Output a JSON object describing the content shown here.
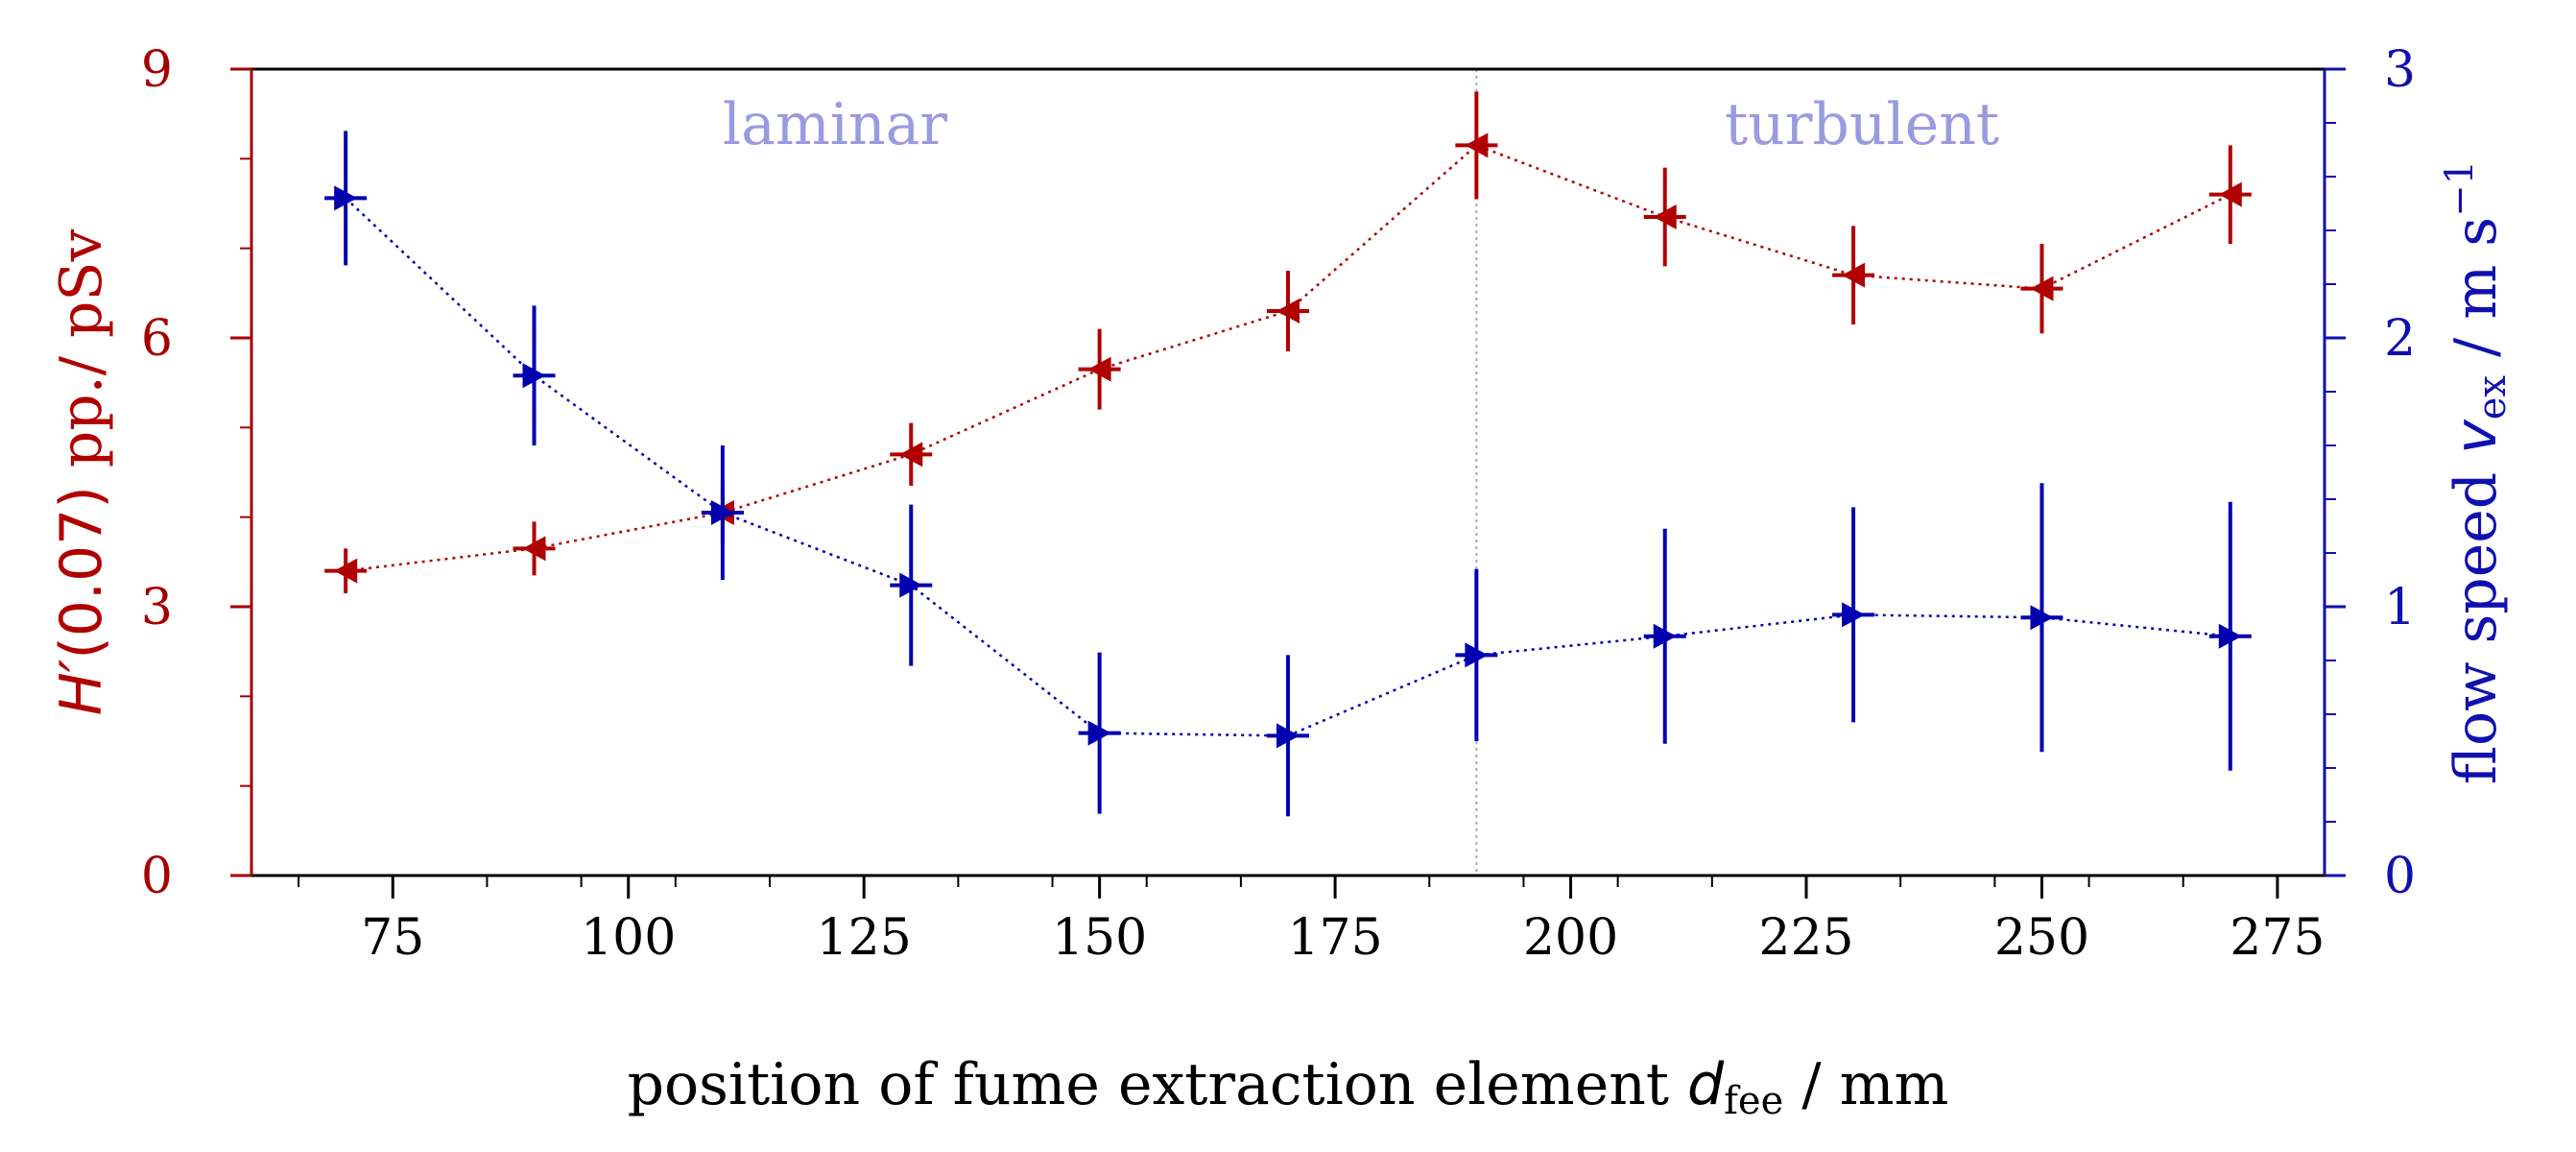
{
  "chart_data": {
    "type": "scatter",
    "x": [
      70,
      90,
      110,
      130,
      150,
      170,
      190,
      210,
      230,
      250,
      270
    ],
    "xlim": [
      60,
      280
    ],
    "xticks": [
      "75",
      "100",
      "125",
      "150",
      "175",
      "200",
      "225",
      "250",
      "275"
    ],
    "xtick_values": [
      75,
      100,
      125,
      150,
      175,
      200,
      225,
      250,
      275
    ],
    "xlabel": {
      "main": "position of fume extraction element ",
      "var": "d",
      "sub": "fee",
      "unit": " / mm"
    },
    "left_axis": {
      "label": {
        "var": "H′",
        "arg": "(0.07)",
        "unit": " pp./ pSv"
      },
      "ylim": [
        0,
        9
      ],
      "ticks": [
        "0",
        "3",
        "6",
        "9"
      ],
      "tick_values": [
        0,
        3,
        6,
        9
      ],
      "color": "#a50000"
    },
    "right_axis": {
      "label": {
        "main": "flow speed ",
        "var": "v",
        "sub": "ex",
        "unit": " /  m s",
        "sup": "−1"
      },
      "ylim": [
        0,
        3
      ],
      "ticks": [
        "0",
        "1",
        "2",
        "3"
      ],
      "tick_values": [
        0,
        1,
        2,
        3
      ],
      "color": "#1010b0"
    },
    "series": [
      {
        "name": "H'(0.07)",
        "axis": "left",
        "color": "#b00000",
        "values": [
          3.4,
          3.65,
          4.05,
          4.7,
          5.65,
          6.3,
          8.15,
          7.35,
          6.7,
          6.55,
          7.6
        ],
        "yerr": [
          0.25,
          0.3,
          0.35,
          0.35,
          0.45,
          0.45,
          0.6,
          0.55,
          0.55,
          0.5,
          0.55
        ]
      },
      {
        "name": "flow speed",
        "axis": "right",
        "color": "#0000b0",
        "values": [
          2.52,
          1.86,
          1.35,
          1.08,
          0.53,
          0.52,
          0.82,
          0.89,
          0.97,
          0.96,
          0.89
        ],
        "yerr": [
          0.25,
          0.26,
          0.25,
          0.3,
          0.3,
          0.3,
          0.32,
          0.4,
          0.4,
          0.5,
          0.5
        ]
      }
    ],
    "annotations": {
      "left_text": "laminar",
      "right_text": "turbulent",
      "divider_x": 190
    },
    "grid": false
  }
}
